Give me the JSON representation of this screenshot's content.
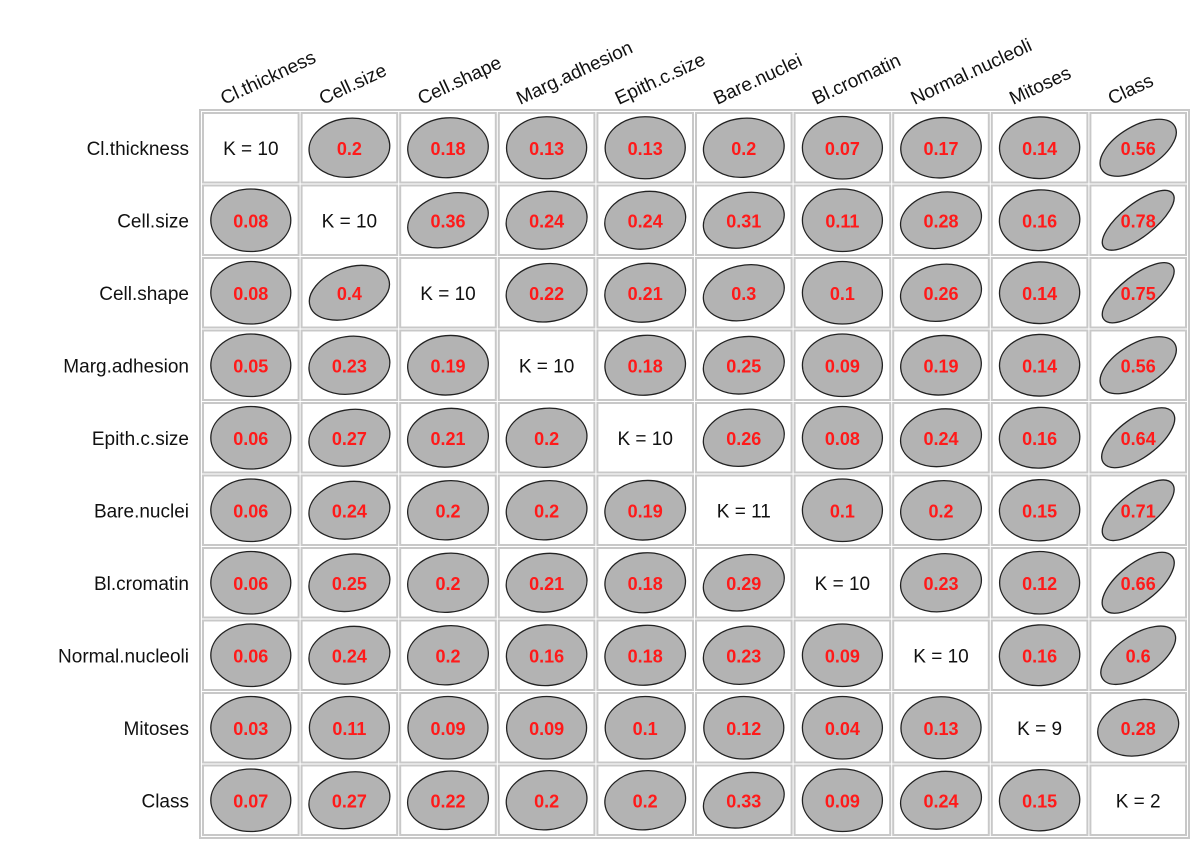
{
  "chart_data": {
    "type": "heatmap",
    "variables": [
      "Cl.thickness",
      "Cell.size",
      "Cell.shape",
      "Marg.adhesion",
      "Epith.c.size",
      "Bare.nuclei",
      "Bl.cromatin",
      "Normal.nucleoli",
      "Mitoses",
      "Class"
    ],
    "diagonal": [
      "K = 10",
      "K = 10",
      "K = 10",
      "K = 10",
      "K = 10",
      "K = 11",
      "K = 10",
      "K = 10",
      "K = 9",
      "K = 2"
    ],
    "values": [
      [
        null,
        0.2,
        0.18,
        0.13,
        0.13,
        0.2,
        0.07,
        0.17,
        0.14,
        0.56
      ],
      [
        0.08,
        null,
        0.36,
        0.24,
        0.24,
        0.31,
        0.11,
        0.28,
        0.16,
        0.78
      ],
      [
        0.08,
        0.4,
        null,
        0.22,
        0.21,
        0.3,
        0.1,
        0.26,
        0.14,
        0.75
      ],
      [
        0.05,
        0.23,
        0.19,
        null,
        0.18,
        0.25,
        0.09,
        0.19,
        0.14,
        0.56
      ],
      [
        0.06,
        0.27,
        0.21,
        0.2,
        null,
        0.26,
        0.08,
        0.24,
        0.16,
        0.64
      ],
      [
        0.06,
        0.24,
        0.2,
        0.2,
        0.19,
        null,
        0.1,
        0.2,
        0.15,
        0.71
      ],
      [
        0.06,
        0.25,
        0.2,
        0.21,
        0.18,
        0.29,
        null,
        0.23,
        0.12,
        0.66
      ],
      [
        0.06,
        0.24,
        0.2,
        0.16,
        0.18,
        0.23,
        0.09,
        null,
        0.16,
        0.6
      ],
      [
        0.03,
        0.11,
        0.09,
        0.09,
        0.1,
        0.12,
        0.04,
        0.13,
        null,
        0.28
      ],
      [
        0.07,
        0.27,
        0.22,
        0.2,
        0.2,
        0.33,
        0.09,
        0.24,
        0.15,
        null
      ]
    ],
    "title": "",
    "xlabel": "",
    "ylabel": "",
    "colors": {
      "ellipse_fill": "#b3b3b3",
      "ellipse_stroke": "#222222",
      "value_text": "#ff1a1a",
      "grid": "#c8c8c8"
    }
  }
}
